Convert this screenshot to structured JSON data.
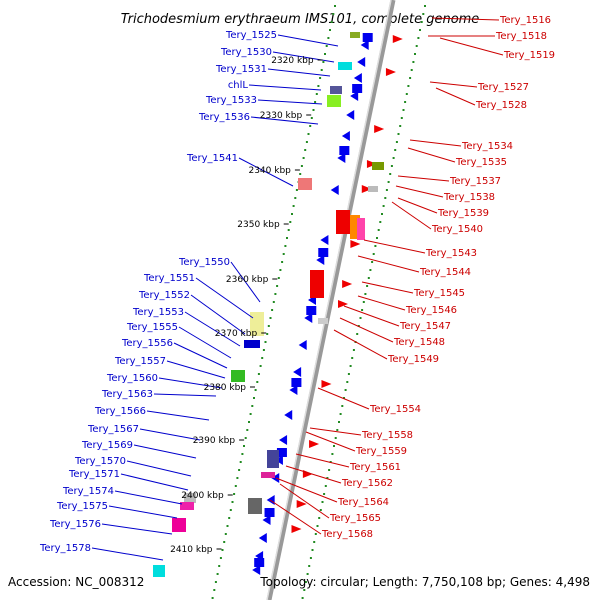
{
  "title": "Trichodesmium erythraeum IMS101, complete genome",
  "footer": {
    "accession": "Accession: NC_008312",
    "summary": "Topology: circular; Length: 7,750,108 bp; Genes: 4,498"
  },
  "colors": {
    "forward_label": "#0000cc",
    "reverse_label": "#cc0000",
    "forward_gene": "#0000ee",
    "reverse_gene": "#ee0000",
    "backbone": "#999999",
    "tick": "#228b22"
  },
  "kbp_ticks": [
    "2320 kbp",
    "2330 kbp",
    "2340 kbp",
    "2350 kbp",
    "2360 kbp",
    "2370 kbp",
    "2380 kbp",
    "2390 kbp",
    "2400 kbp",
    "2410 kbp"
  ],
  "left_labels": [
    "Tery_1525",
    "Tery_1530",
    "Tery_1531",
    "chlL",
    "Tery_1533",
    "Tery_1536",
    "Tery_1541",
    "Tery_1550",
    "Tery_1551",
    "Tery_1552",
    "Tery_1553",
    "Tery_1555",
    "Tery_1556",
    "Tery_1557",
    "Tery_1560",
    "Tery_1563",
    "Tery_1566",
    "Tery_1567",
    "Tery_1569",
    "Tery_1570",
    "Tery_1571",
    "Tery_1574",
    "Tery_1575",
    "Tery_1576",
    "Tery_1578"
  ],
  "right_labels": [
    "Tery_1516",
    "Tery_1518",
    "Tery_1519",
    "Tery_1527",
    "Tery_1528",
    "Tery_1534",
    "Tery_1535",
    "Tery_1537",
    "Tery_1538",
    "Tery_1539",
    "Tery_1540",
    "Tery_1543",
    "Tery_1544",
    "Tery_1545",
    "Tery_1546",
    "Tery_1547",
    "Tery_1548",
    "Tery_1549",
    "Tery_1554",
    "Tery_1558",
    "Tery_1559",
    "Tery_1561",
    "Tery_1562",
    "Tery_1564",
    "Tery_1565",
    "Tery_1568"
  ]
}
